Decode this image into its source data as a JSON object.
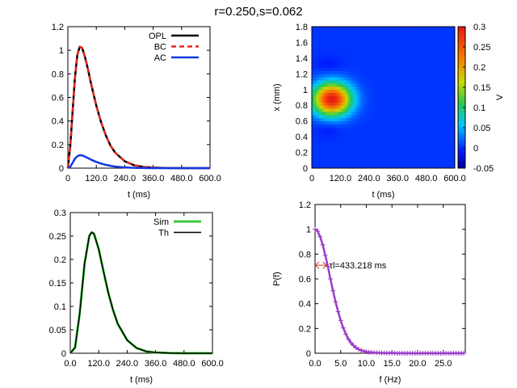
{
  "figure_title": "r=0.250,s=0.062",
  "chart_data": [
    {
      "id": "p1",
      "type": "line",
      "xlabel": "t (ms)",
      "ylabel": "",
      "xlim": [
        0,
        600
      ],
      "ylim": [
        0,
        1.2
      ],
      "xticks": [
        {
          "v": 0,
          "label": "0"
        },
        {
          "v": 120,
          "label": "120.0"
        },
        {
          "v": 240,
          "label": "240.0"
        },
        {
          "v": 360,
          "label": "360.0"
        },
        {
          "v": 480,
          "label": "480.0"
        },
        {
          "v": 600,
          "label": "600.0"
        }
      ],
      "yticks": [
        {
          "v": 0,
          "label": "0"
        },
        {
          "v": 0.2,
          "label": "0.2"
        },
        {
          "v": 0.4,
          "label": "0.4"
        },
        {
          "v": 0.6,
          "label": "0.6"
        },
        {
          "v": 0.8,
          "label": "0.8"
        },
        {
          "v": 1.0,
          "label": "1"
        },
        {
          "v": 1.2,
          "label": "1.2"
        }
      ],
      "legend_position": "top-right",
      "series": [
        {
          "name": "OPL",
          "color": "#000000",
          "dash": "solid",
          "x": [
            0,
            10,
            20,
            30,
            40,
            50,
            60,
            70,
            80,
            90,
            100,
            120,
            140,
            160,
            180,
            200,
            240,
            280,
            320,
            360,
            420,
            480,
            540,
            600
          ],
          "y": [
            0,
            0.18,
            0.48,
            0.77,
            0.96,
            1.03,
            1.02,
            0.96,
            0.88,
            0.79,
            0.7,
            0.53,
            0.39,
            0.28,
            0.19,
            0.13,
            0.058,
            0.024,
            0.01,
            0.004,
            0.001,
            0,
            0,
            0
          ]
        },
        {
          "name": "BC",
          "color": "#e8261a",
          "dash": "dashed",
          "x": [
            0,
            10,
            20,
            30,
            40,
            50,
            60,
            70,
            80,
            90,
            100,
            120,
            140,
            160,
            180,
            200,
            240,
            280,
            320,
            360,
            420,
            480,
            540,
            600
          ],
          "y": [
            0,
            0.18,
            0.48,
            0.77,
            0.96,
            1.03,
            1.02,
            0.96,
            0.88,
            0.79,
            0.7,
            0.53,
            0.39,
            0.28,
            0.19,
            0.13,
            0.058,
            0.024,
            0.01,
            0.004,
            0.001,
            0,
            0,
            0
          ]
        },
        {
          "name": "AC",
          "color": "#1238e0",
          "dash": "solid",
          "x": [
            0,
            10,
            20,
            30,
            40,
            50,
            60,
            70,
            80,
            90,
            100,
            120,
            140,
            160,
            180,
            200,
            240,
            280,
            320,
            360,
            420,
            480,
            540,
            600
          ],
          "y": [
            0,
            0.012,
            0.045,
            0.08,
            0.1,
            0.11,
            0.108,
            0.1,
            0.09,
            0.08,
            0.07,
            0.053,
            0.039,
            0.028,
            0.02,
            0.013,
            0.006,
            0.003,
            0.001,
            0,
            0,
            0,
            0,
            0
          ]
        }
      ]
    },
    {
      "id": "p2",
      "type": "heatmap",
      "xlabel": "t (ms)",
      "ylabel": "x (mm)",
      "colorbar_label": "V",
      "xlim": [
        0,
        600
      ],
      "ylim": [
        0,
        1.8
      ],
      "clim": [
        -0.05,
        0.3
      ],
      "xticks": [
        {
          "v": 0,
          "label": "0"
        },
        {
          "v": 120,
          "label": "120.0"
        },
        {
          "v": 240,
          "label": "240.0"
        },
        {
          "v": 360,
          "label": "360.0"
        },
        {
          "v": 480,
          "label": "480.0"
        },
        {
          "v": 600,
          "label": "600.0"
        }
      ],
      "yticks": [
        {
          "v": 0,
          "label": "0"
        },
        {
          "v": 0.2,
          "label": "0.2"
        },
        {
          "v": 0.4,
          "label": "0.4"
        },
        {
          "v": 0.6,
          "label": "0.6"
        },
        {
          "v": 0.8,
          "label": "0.8"
        },
        {
          "v": 1.0,
          "label": "1"
        },
        {
          "v": 1.2,
          "label": "1.2"
        },
        {
          "v": 1.4,
          "label": "1.4"
        },
        {
          "v": 1.6,
          "label": "1.6"
        },
        {
          "v": 1.8,
          "label": "1.8"
        }
      ],
      "cticks": [
        {
          "v": -0.05,
          "label": "-0.05"
        },
        {
          "v": 0,
          "label": "0"
        },
        {
          "v": 0.05,
          "label": "0.05"
        },
        {
          "v": 0.1,
          "label": "0.1"
        },
        {
          "v": 0.15,
          "label": "0.15"
        },
        {
          "v": 0.2,
          "label": "0.2"
        },
        {
          "v": 0.25,
          "label": "0.25"
        },
        {
          "v": 0.3,
          "label": "0.3"
        }
      ],
      "blobs": [
        {
          "t": 85,
          "x": 0.88,
          "amp": 0.3,
          "st": 55,
          "sx": 0.14
        },
        {
          "t": 70,
          "x": 1.32,
          "amp": -0.012,
          "st": 40,
          "sx": 0.07
        },
        {
          "t": 70,
          "x": 0.5,
          "amp": -0.012,
          "st": 40,
          "sx": 0.07
        }
      ],
      "background_value": 0.0
    },
    {
      "id": "p3",
      "type": "line",
      "xlabel": "t (ms)",
      "ylabel": "",
      "xlim": [
        0,
        600
      ],
      "ylim": [
        0,
        0.3
      ],
      "xticks": [
        {
          "v": 0,
          "label": "0.0"
        },
        {
          "v": 120,
          "label": "120.0"
        },
        {
          "v": 240,
          "label": "240.0"
        },
        {
          "v": 360,
          "label": "360.0"
        },
        {
          "v": 480,
          "label": "480.0"
        },
        {
          "v": 600,
          "label": "600.0"
        }
      ],
      "yticks": [
        {
          "v": 0,
          "label": "0"
        },
        {
          "v": 0.05,
          "label": "0.05"
        },
        {
          "v": 0.1,
          "label": "0.1"
        },
        {
          "v": 0.15,
          "label": "0.15"
        },
        {
          "v": 0.2,
          "label": "0.2"
        },
        {
          "v": 0.25,
          "label": "0.25"
        },
        {
          "v": 0.3,
          "label": "0.3"
        }
      ],
      "legend_position": "top-right",
      "series": [
        {
          "name": "Sim",
          "color": "#3ec83e",
          "dash": "solid",
          "width": 3,
          "x": [
            0,
            20,
            40,
            60,
            80,
            90,
            100,
            120,
            140,
            160,
            180,
            200,
            240,
            280,
            320,
            360,
            420,
            480,
            540,
            600
          ],
          "y": [
            0,
            0.012,
            0.085,
            0.19,
            0.25,
            0.258,
            0.255,
            0.222,
            0.175,
            0.13,
            0.093,
            0.063,
            0.028,
            0.011,
            0.004,
            0.0015,
            0.0004,
            0,
            0,
            0
          ]
        },
        {
          "name": "Th",
          "color": "#000000",
          "dash": "solid",
          "width": 1.5,
          "x": [
            0,
            20,
            40,
            60,
            80,
            90,
            100,
            120,
            140,
            160,
            180,
            200,
            240,
            280,
            320,
            360,
            420,
            480,
            540,
            600
          ],
          "y": [
            0,
            0.012,
            0.085,
            0.19,
            0.25,
            0.258,
            0.255,
            0.222,
            0.175,
            0.13,
            0.093,
            0.063,
            0.028,
            0.011,
            0.004,
            0.0015,
            0.0004,
            0,
            0,
            0
          ]
        }
      ]
    },
    {
      "id": "p4",
      "type": "line",
      "xlabel": "f (Hz)",
      "ylabel": "P(f)",
      "xlim": [
        0,
        29.3
      ],
      "ylim": [
        0,
        1.2
      ],
      "xticks": [
        {
          "v": 0,
          "label": "0.0"
        },
        {
          "v": 5,
          "label": "5.0"
        },
        {
          "v": 10,
          "label": "10.0"
        },
        {
          "v": 15,
          "label": "15.0"
        },
        {
          "v": 20,
          "label": "20.0"
        },
        {
          "v": 25,
          "label": "25.0"
        }
      ],
      "yticks": [
        {
          "v": 0,
          "label": "0"
        },
        {
          "v": 0.2,
          "label": "0.2"
        },
        {
          "v": 0.4,
          "label": "0.4"
        },
        {
          "v": 0.6,
          "label": "0.6"
        },
        {
          "v": 0.8,
          "label": "0.8"
        },
        {
          "v": 1.0,
          "label": "1"
        },
        {
          "v": 1.2,
          "label": "1.2"
        }
      ],
      "annotation": {
        "text": "τl=433.218 ms",
        "y": 0.71,
        "x_end": 2.3
      },
      "series": [
        {
          "name": "",
          "color": "#9a3dc8",
          "dash": "solid",
          "marker": "plus",
          "x": [
            0,
            0.5,
            1,
            1.5,
            2,
            2.5,
            3,
            3.5,
            4,
            4.5,
            5,
            5.5,
            6,
            6.5,
            7,
            7.5,
            8,
            8.5,
            9,
            9.5,
            10,
            10.5,
            11,
            11.5,
            12,
            12.5,
            13,
            13.5,
            14,
            14.5,
            15,
            15.5,
            16,
            16.5,
            17,
            17.5,
            18,
            18.5,
            19,
            19.5,
            20,
            20.5,
            21,
            21.5,
            22,
            22.5,
            23,
            23.5,
            24,
            24.5,
            25,
            25.5,
            26,
            26.5,
            27,
            27.5,
            28,
            28.5,
            29
          ],
          "y": [
            1.0,
            0.985,
            0.94,
            0.875,
            0.79,
            0.7,
            0.6,
            0.505,
            0.415,
            0.335,
            0.265,
            0.205,
            0.155,
            0.115,
            0.085,
            0.062,
            0.045,
            0.032,
            0.023,
            0.017,
            0.012,
            0.009,
            0.007,
            0.005,
            0.004,
            0.003,
            0.002,
            0.002,
            0.001,
            0.001,
            0.001,
            0.001,
            0,
            0,
            0,
            0,
            0,
            0,
            0,
            0,
            0,
            0,
            0,
            0,
            0,
            0,
            0,
            0,
            0,
            0,
            0,
            0,
            0,
            0,
            0,
            0,
            0,
            0,
            0
          ]
        }
      ]
    }
  ]
}
